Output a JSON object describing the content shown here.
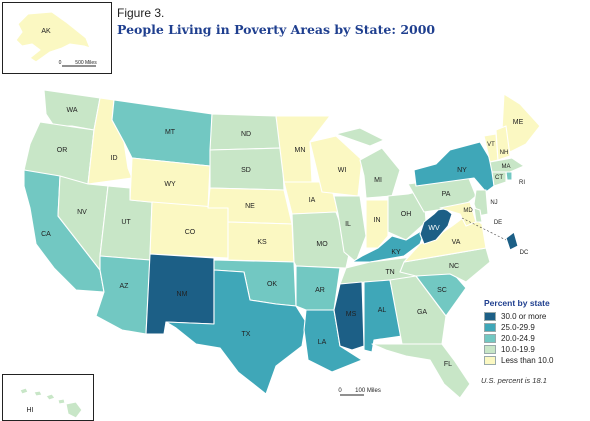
{
  "header": {
    "figure_label": "Figure 3.",
    "title": "People Living in Poverty Areas by State: 2000"
  },
  "legend": {
    "title": "Percent by state",
    "items": [
      {
        "label": "30.0 or more",
        "color": "#1c5f86"
      },
      {
        "label": "25.0-29.9",
        "color": "#3fa7b8"
      },
      {
        "label": "20.0-24.9",
        "color": "#72c8c2"
      },
      {
        "label": "10.0-19.9",
        "color": "#c8e6c7"
      },
      {
        "label": "Less than 10.0",
        "color": "#fbf8c2"
      }
    ],
    "note": "U.S. percent is 18.1"
  },
  "scale_bars": {
    "alaska": {
      "zero": "0",
      "label": "500 Miles"
    },
    "main": {
      "zero": "0",
      "label": "100 Miles"
    }
  },
  "states": [
    {
      "abbr": "WA",
      "cls": 3
    },
    {
      "abbr": "OR",
      "cls": 3
    },
    {
      "abbr": "CA",
      "cls": 2
    },
    {
      "abbr": "ID",
      "cls": 4
    },
    {
      "abbr": "NV",
      "cls": 3
    },
    {
      "abbr": "UT",
      "cls": 3
    },
    {
      "abbr": "AZ",
      "cls": 2
    },
    {
      "abbr": "MT",
      "cls": 2
    },
    {
      "abbr": "WY",
      "cls": 4
    },
    {
      "abbr": "CO",
      "cls": 4
    },
    {
      "abbr": "NM",
      "cls": 0
    },
    {
      "abbr": "ND",
      "cls": 3
    },
    {
      "abbr": "SD",
      "cls": 3
    },
    {
      "abbr": "NE",
      "cls": 4
    },
    {
      "abbr": "KS",
      "cls": 4
    },
    {
      "abbr": "OK",
      "cls": 2
    },
    {
      "abbr": "TX",
      "cls": 1
    },
    {
      "abbr": "MN",
      "cls": 4
    },
    {
      "abbr": "IA",
      "cls": 4
    },
    {
      "abbr": "MO",
      "cls": 3
    },
    {
      "abbr": "AR",
      "cls": 2
    },
    {
      "abbr": "LA",
      "cls": 1
    },
    {
      "abbr": "WI",
      "cls": 4
    },
    {
      "abbr": "IL",
      "cls": 3
    },
    {
      "abbr": "MI",
      "cls": 3
    },
    {
      "abbr": "IN",
      "cls": 4
    },
    {
      "abbr": "OH",
      "cls": 3
    },
    {
      "abbr": "KY",
      "cls": 1
    },
    {
      "abbr": "TN",
      "cls": 3
    },
    {
      "abbr": "MS",
      "cls": 0
    },
    {
      "abbr": "AL",
      "cls": 1
    },
    {
      "abbr": "GA",
      "cls": 3
    },
    {
      "abbr": "FL",
      "cls": 3
    },
    {
      "abbr": "SC",
      "cls": 2
    },
    {
      "abbr": "NC",
      "cls": 3
    },
    {
      "abbr": "VA",
      "cls": 4
    },
    {
      "abbr": "WV",
      "cls": 0
    },
    {
      "abbr": "PA",
      "cls": 3
    },
    {
      "abbr": "NY",
      "cls": 1
    },
    {
      "abbr": "ME",
      "cls": 4
    },
    {
      "abbr": "VT",
      "cls": 4
    },
    {
      "abbr": "NH",
      "cls": 4
    },
    {
      "abbr": "MA",
      "cls": 3
    },
    {
      "abbr": "RI",
      "cls": 2
    },
    {
      "abbr": "CT",
      "cls": 3
    },
    {
      "abbr": "NJ",
      "cls": 3
    },
    {
      "abbr": "DE",
      "cls": 3
    },
    {
      "abbr": "MD",
      "cls": 4
    },
    {
      "abbr": "DC",
      "cls": 0
    },
    {
      "abbr": "AK",
      "cls": 4
    },
    {
      "abbr": "HI",
      "cls": 3
    }
  ]
}
